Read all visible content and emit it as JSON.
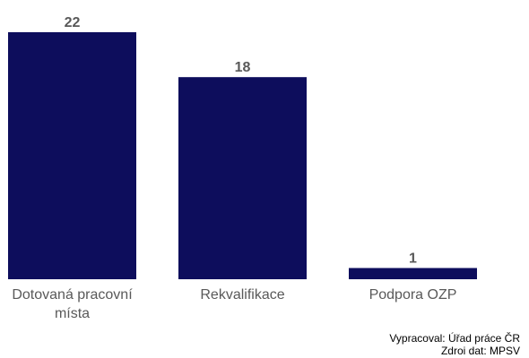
{
  "chart_data": {
    "type": "bar",
    "categories": [
      "Dotovaná pracovní místa",
      "Rekvalifikace",
      "Podpora OZP"
    ],
    "category_label_lines": [
      [
        "Dotovaná pracovní",
        "místa"
      ],
      [
        "Rekvalifikace"
      ],
      [
        "Podpora OZP"
      ]
    ],
    "values": [
      22,
      18,
      1
    ],
    "data_labels": [
      "22",
      "18",
      "1"
    ],
    "ylim": [
      0,
      22
    ],
    "grid": false,
    "legend": "none",
    "bar_color": "#0d0d5c",
    "label_color": "#595959"
  },
  "footer": {
    "prepared_by": "Vypracoval: Úřad práce ČR",
    "data_source": "Zdroi dat: MPSV"
  }
}
